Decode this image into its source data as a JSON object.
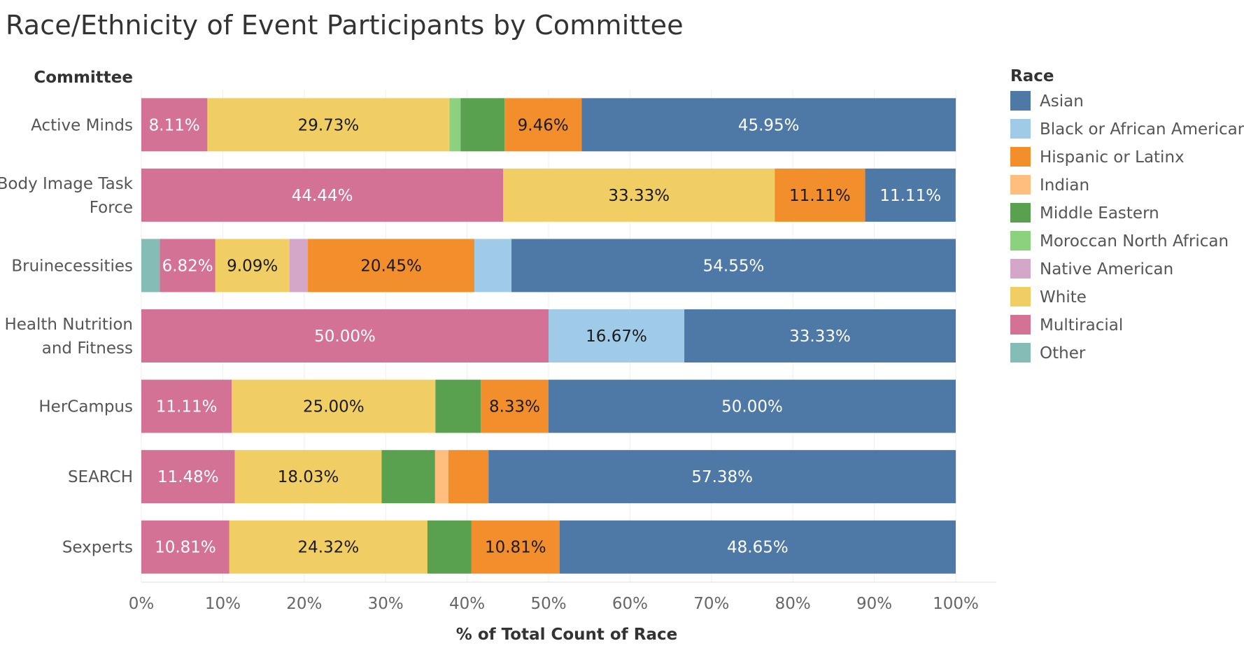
{
  "chart_data": {
    "type": "bar",
    "orientation": "horizontal",
    "stacked": true,
    "title": "Race/Ethnicity of Event Participants by Committee",
    "row_header": "Committee",
    "xlabel": "% of Total Count of Race",
    "xlim": [
      0,
      100
    ],
    "x_ticks": [
      "0%",
      "10%",
      "20%",
      "30%",
      "40%",
      "50%",
      "60%",
      "70%",
      "80%",
      "90%",
      "100%"
    ],
    "grid": true,
    "legend_title": "Race",
    "legend_position": "right",
    "categories": [
      "Active Minds",
      "Body Image Task Force",
      "Bruinecessities",
      "Health Nutrition and Fitness",
      "HerCampus",
      "SEARCH",
      "Sexperts"
    ],
    "stack_order": [
      "Other",
      "Multiracial",
      "White",
      "Native American",
      "Moroccan North African",
      "Middle Eastern",
      "Indian",
      "Hispanic or Latinx",
      "Black or African American",
      "Asian"
    ],
    "series": [
      {
        "name": "Asian",
        "color": "#4e79a7",
        "text_color": "#ffffff",
        "values": [
          45.95,
          11.11,
          54.55,
          33.33,
          50.0,
          57.38,
          48.65
        ]
      },
      {
        "name": "Black or African American",
        "color": "#a0cbe8",
        "text_color": "#1a1a1a",
        "values": [
          0,
          0,
          4.55,
          16.67,
          0,
          0,
          0
        ]
      },
      {
        "name": "Hispanic or Latinx",
        "color": "#f28e2b",
        "text_color": "#1a1a1a",
        "values": [
          9.46,
          11.11,
          20.45,
          0,
          8.33,
          4.92,
          10.81
        ]
      },
      {
        "name": "Indian",
        "color": "#ffbe7d",
        "text_color": "#1a1a1a",
        "values": [
          0,
          0,
          0,
          0,
          0,
          1.64,
          0
        ]
      },
      {
        "name": "Middle Eastern",
        "color": "#59a14f",
        "text_color": "#ffffff",
        "values": [
          5.41,
          0,
          0,
          0,
          5.56,
          6.56,
          5.41
        ]
      },
      {
        "name": "Moroccan North African",
        "color": "#8cd17d",
        "text_color": "#1a1a1a",
        "values": [
          1.35,
          0,
          0,
          0,
          0,
          0,
          0
        ]
      },
      {
        "name": "Native American",
        "color": "#d4a6c8",
        "text_color": "#1a1a1a",
        "values": [
          0,
          0,
          2.27,
          0,
          0,
          0,
          0
        ]
      },
      {
        "name": "White",
        "color": "#f1ce63",
        "text_color": "#1a1a1a",
        "values": [
          29.73,
          33.33,
          9.09,
          0,
          25.0,
          18.03,
          24.32
        ]
      },
      {
        "name": "Multiracial",
        "color": "#d37295",
        "text_color": "#ffffff",
        "values": [
          8.11,
          44.44,
          6.82,
          50.0,
          11.11,
          11.48,
          10.81
        ]
      },
      {
        "name": "Other",
        "color": "#86bcb6",
        "text_color": "#1a1a1a",
        "values": [
          0,
          0,
          2.27,
          0,
          0,
          0,
          0
        ]
      }
    ],
    "data_labels": {
      "Active Minds": {
        "Multiracial": "8.11%",
        "White": "29.73%",
        "Hispanic or Latinx": "9.46%",
        "Asian": "45.95%"
      },
      "Body Image Task Force": {
        "Multiracial": "44.44%",
        "White": "33.33%",
        "Hispanic or Latinx": "11.11%",
        "Asian": "11.11%"
      },
      "Bruinecessities": {
        "Multiracial": "6.82%",
        "White": "9.09%",
        "Hispanic or Latinx": "20.45%",
        "Asian": "54.55%"
      },
      "Health Nutrition and Fitness": {
        "Multiracial": "50.00%",
        "Black or African American": "16.67%",
        "Asian": "33.33%"
      },
      "HerCampus": {
        "Multiracial": "11.11%",
        "White": "25.00%",
        "Hispanic or Latinx": "8.33%",
        "Asian": "50.00%"
      },
      "SEARCH": {
        "Multiracial": "11.48%",
        "White": "18.03%",
        "Asian": "57.38%"
      },
      "Sexperts": {
        "Multiracial": "10.81%",
        "White": "24.32%",
        "Hispanic or Latinx": "10.81%",
        "Asian": "48.65%"
      }
    }
  }
}
